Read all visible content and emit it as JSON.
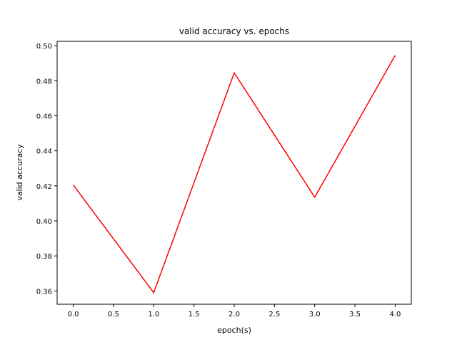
{
  "chart_data": {
    "type": "line",
    "title": "valid accuracy vs. epochs",
    "xlabel": "epoch(s)",
    "ylabel": "valid accuracy",
    "x": [
      0,
      1,
      2,
      3,
      4
    ],
    "series": [
      {
        "values": [
          0.4205,
          0.359,
          0.4845,
          0.4135,
          0.4945
        ],
        "color": "#ff0000"
      }
    ],
    "xlim": [
      -0.2,
      4.2
    ],
    "ylim": [
      0.3524,
      0.5025
    ],
    "xticks": [
      0.0,
      0.5,
      1.0,
      1.5,
      2.0,
      2.5,
      3.0,
      3.5,
      4.0
    ],
    "xtick_labels": [
      "0.0",
      "0.5",
      "1.0",
      "1.5",
      "2.0",
      "2.5",
      "3.0",
      "3.5",
      "4.0"
    ],
    "yticks": [
      0.36,
      0.38,
      0.4,
      0.42,
      0.44,
      0.46,
      0.48,
      0.5
    ],
    "ytick_labels": [
      "0.36",
      "0.38",
      "0.40",
      "0.42",
      "0.44",
      "0.46",
      "0.48",
      "0.50"
    ],
    "grid": false,
    "legend": false
  }
}
